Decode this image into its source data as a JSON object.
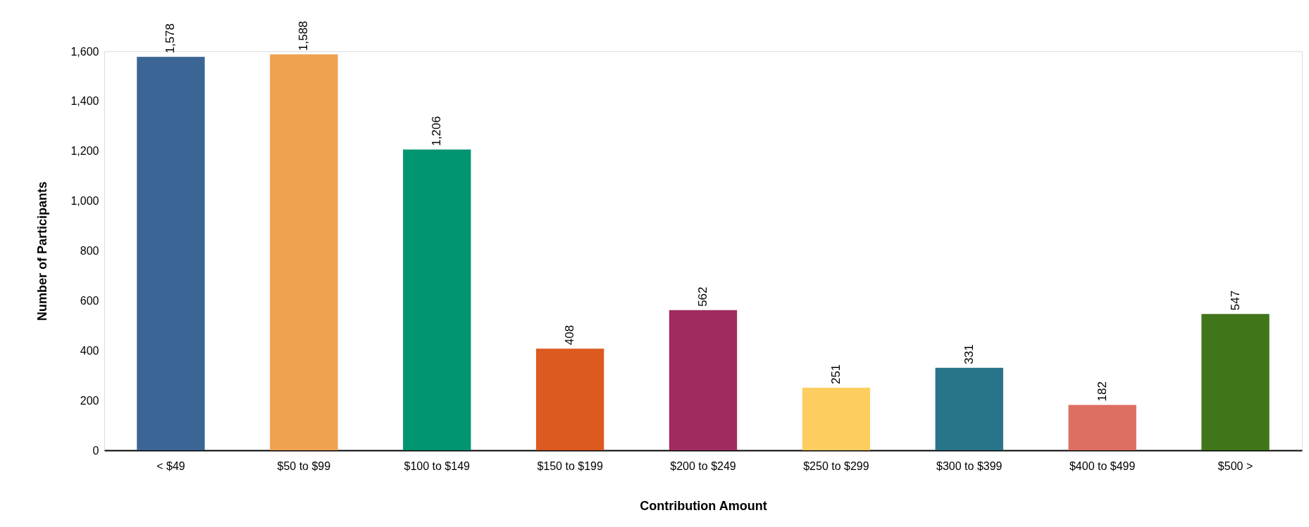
{
  "chart_data": {
    "type": "bar",
    "xlabel": "Contribution Amount",
    "ylabel": "Number of Participants",
    "categories": [
      "< $49",
      "$50 to $99",
      "$100 to $149",
      "$150 to $199",
      "$200 to $249",
      "$250 to $299",
      "$300 to $399",
      "$400 to $499",
      "$500 >"
    ],
    "values": [
      1578,
      1588,
      1206,
      408,
      562,
      251,
      331,
      182,
      547
    ],
    "value_labels": [
      "1,578",
      "1,588",
      "1,206",
      "408",
      "562",
      "251",
      "331",
      "182",
      "547"
    ],
    "colors": [
      "#3a6595",
      "#f0a150",
      "#009570",
      "#dc5920",
      "#a02b5f",
      "#fdcd60",
      "#287489",
      "#dc6f62",
      "#41751a"
    ],
    "ylim": [
      0,
      1600
    ],
    "yticks": [
      0,
      {
        "value": 200,
        "label": "200"
      },
      {
        "value": 400,
        "label": "400"
      },
      {
        "value": 600,
        "label": "600"
      },
      {
        "value": 800,
        "label": "800"
      },
      {
        "value": 1000,
        "label": "1,000"
      },
      {
        "value": 1200,
        "label": "1,200"
      },
      {
        "value": 1400,
        "label": "1,400"
      },
      {
        "value": 1600,
        "label": "1,600"
      }
    ],
    "grid": false
  }
}
